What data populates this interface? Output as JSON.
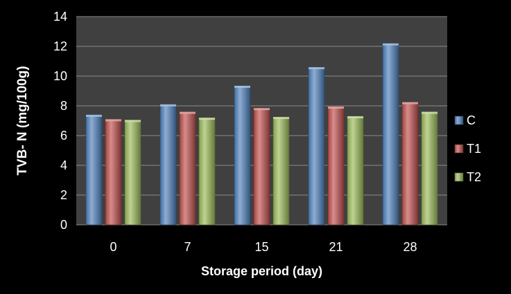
{
  "chart_data": {
    "type": "bar",
    "title": "",
    "xlabel": "Storage period (day)",
    "ylabel": "TVB- N (mg/100g)",
    "categories": [
      "0",
      "7",
      "15",
      "21",
      "28"
    ],
    "series": [
      {
        "name": "C",
        "values": [
          7.4,
          8.1,
          9.35,
          10.6,
          12.2
        ],
        "color": "#4f81bd"
      },
      {
        "name": "T1",
        "values": [
          7.1,
          7.6,
          7.85,
          7.95,
          8.25
        ],
        "color": "#c0504d"
      },
      {
        "name": "T2",
        "values": [
          7.05,
          7.2,
          7.25,
          7.3,
          7.6
        ],
        "color": "#9bbb59"
      }
    ],
    "ylim": [
      0,
      14
    ],
    "yticks": [
      "0",
      "2",
      "4",
      "6",
      "8",
      "10",
      "12",
      "14"
    ],
    "grid": true,
    "legend_position": "right",
    "colors": {
      "page_background": "#000000",
      "plot_background": "#404040",
      "gridline": "#8c8c8c",
      "text": "#ffffff"
    }
  }
}
